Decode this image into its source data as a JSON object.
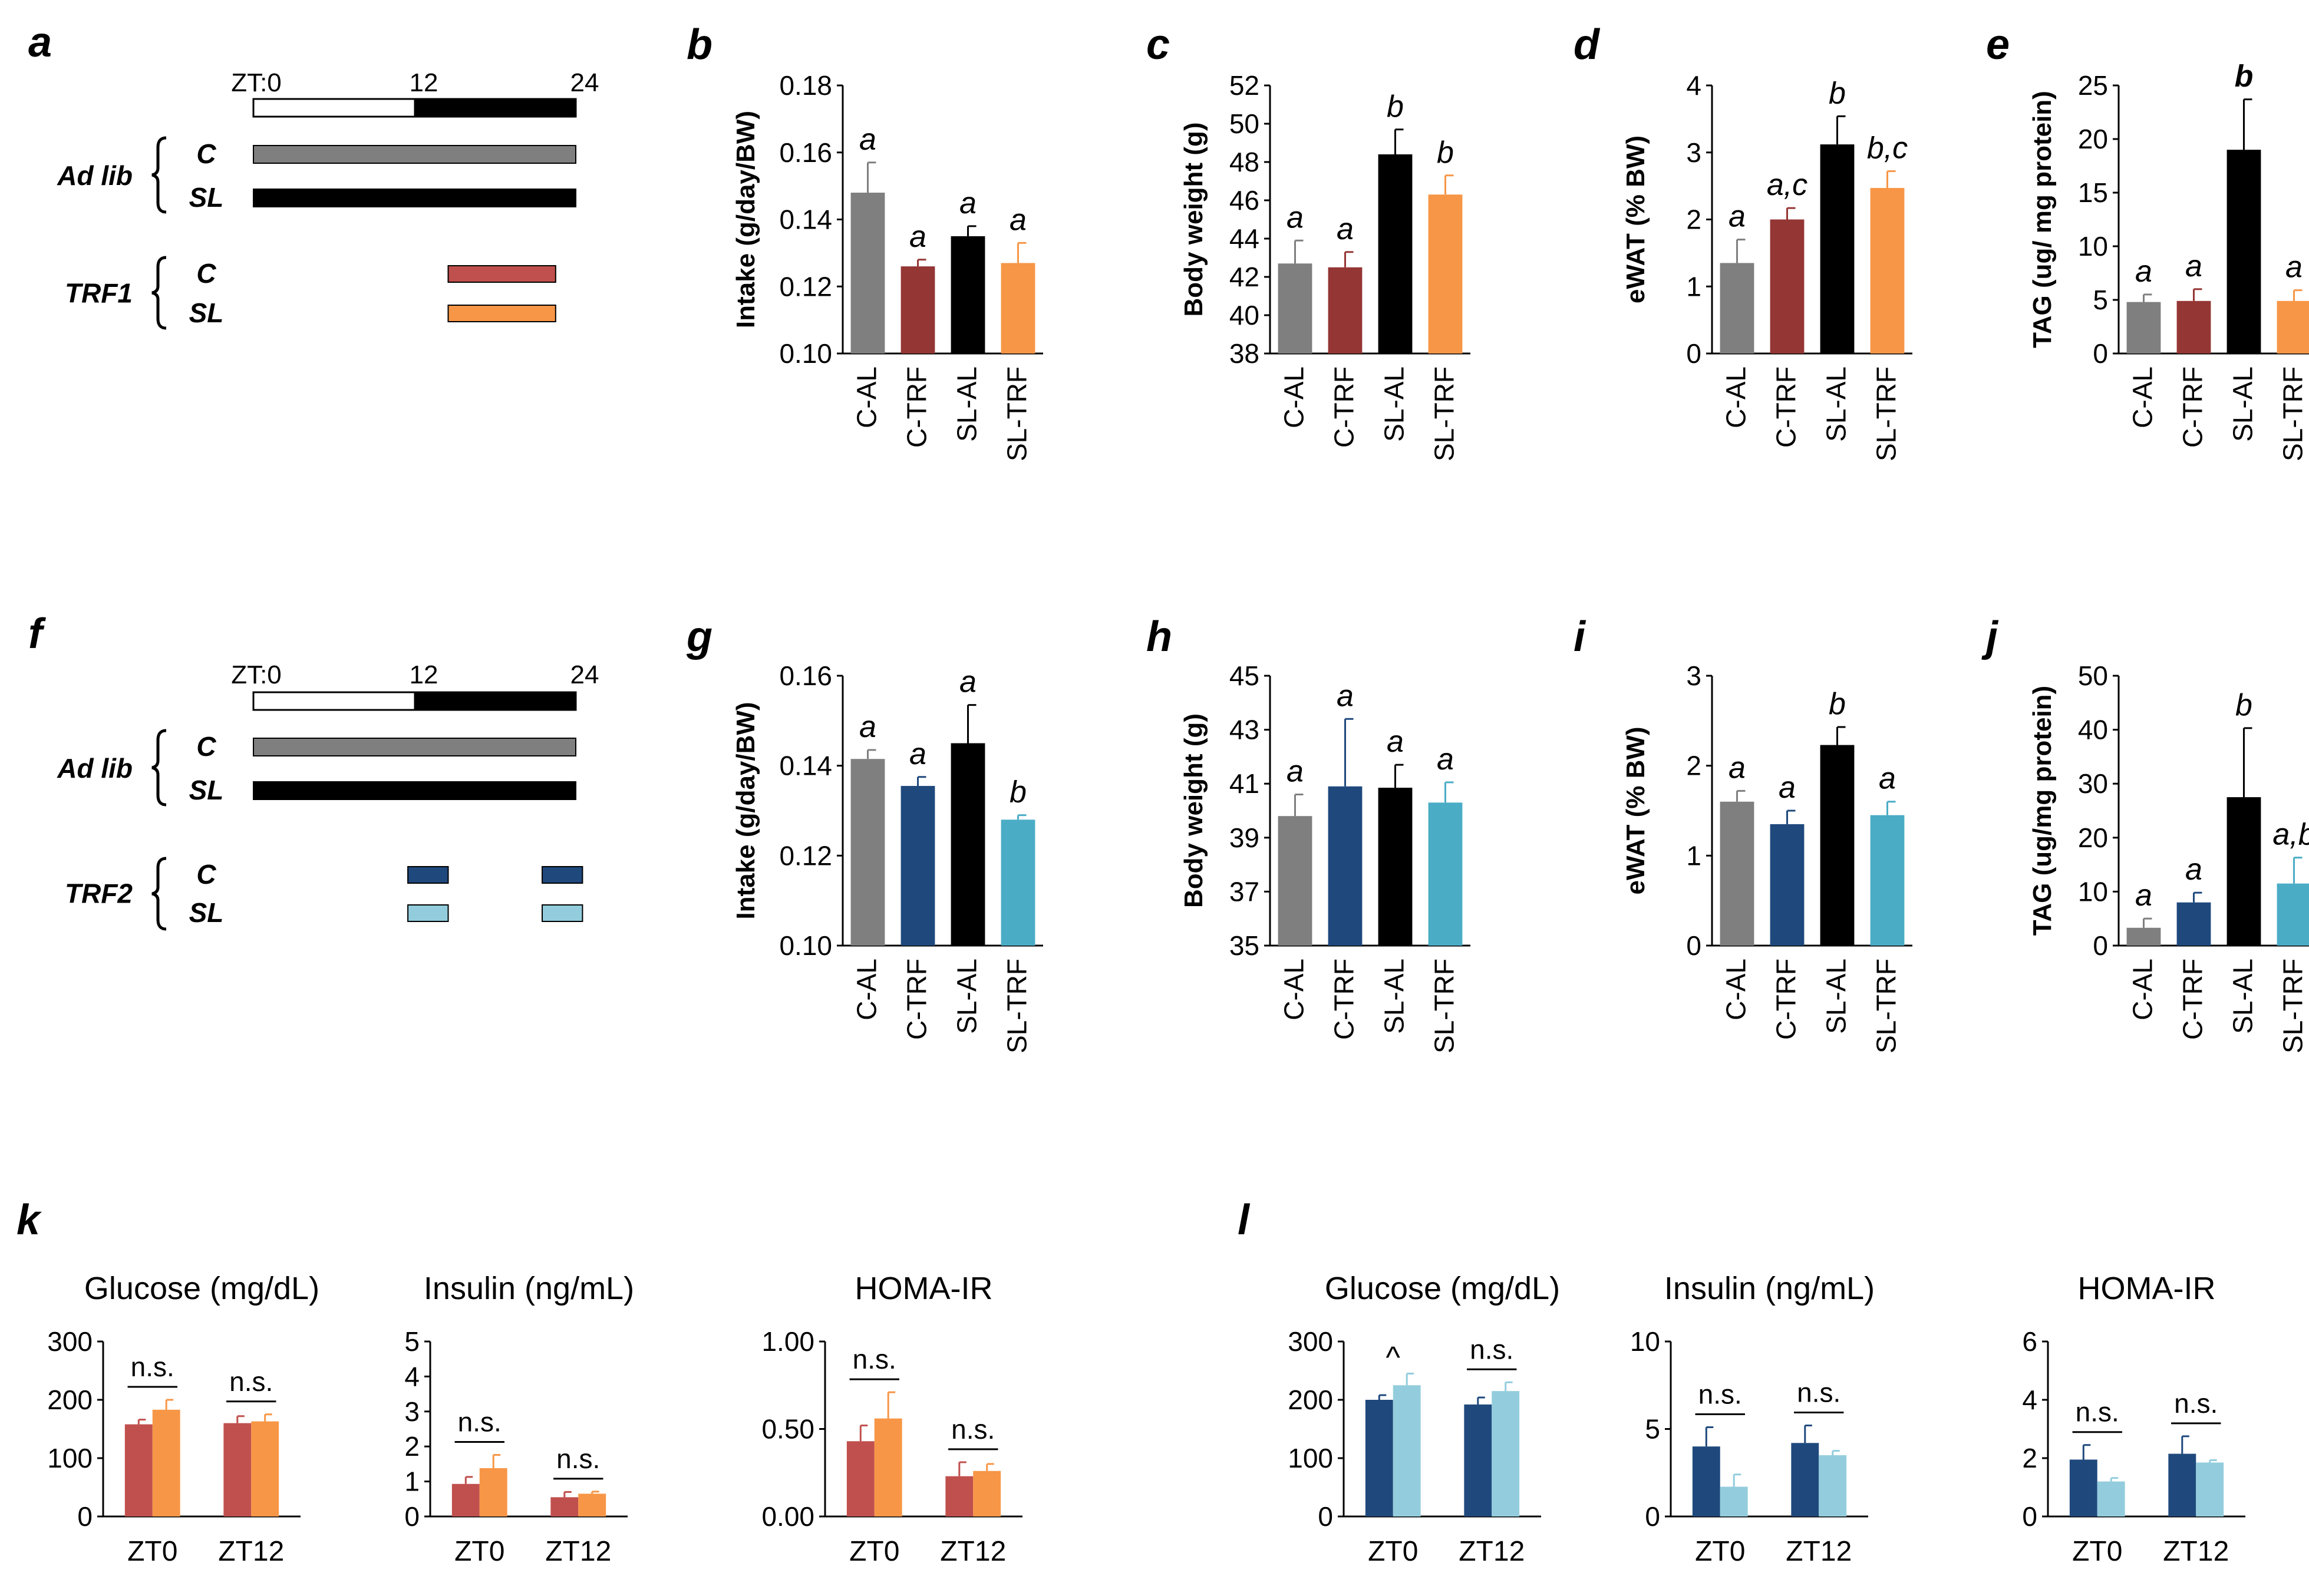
{
  "colors": {
    "gray": "#7f7f7f",
    "dark_red": "#943634",
    "black": "#000000",
    "orange": "#f79646",
    "navy": "#1f497d",
    "teal": "#4bacc6",
    "salmon": "#c0504d",
    "light_blue": "#93cddd",
    "green": "#008000"
  },
  "diagrams": [
    {
      "label": "a",
      "zt_labels": [
        "ZT:0",
        "12",
        "24"
      ],
      "adlib_label": "Ad lib",
      "trf_label": "TRF1",
      "c_label": "C",
      "sl_label": "SL",
      "trf_windows": [
        [
          14.5,
          22.5
        ]
      ],
      "trf_colors": [
        "#c0504d",
        "#f79646"
      ]
    },
    {
      "label": "f",
      "zt_labels": [
        "ZT:0",
        "12",
        "24"
      ],
      "adlib_label": "Ad lib",
      "trf_label": "TRF2",
      "c_label": "C",
      "sl_label": "SL",
      "trf_windows": [
        [
          11.5,
          14.5
        ],
        [
          21.5,
          24.5
        ]
      ],
      "trf_colors": [
        "#1f497d",
        "#93cddd"
      ]
    }
  ],
  "chart_data": [
    {
      "label": "b",
      "type": "bar",
      "ylabel": "Intake (g/day/BW)",
      "categories": [
        "C-AL",
        "C-TRF",
        "SL-AL",
        "SL-TRF"
      ],
      "values": [
        0.148,
        0.126,
        0.135,
        0.127
      ],
      "errors": [
        0.009,
        0.002,
        0.003,
        0.006
      ],
      "sig": [
        "a",
        "a",
        "a",
        "a"
      ],
      "sig_colors": [
        "#000000",
        "#000000",
        "#000000",
        "#000000"
      ],
      "colors": [
        "#7f7f7f",
        "#943634",
        "#000000",
        "#f79646"
      ],
      "ylim": [
        0.1,
        0.18
      ],
      "yticks": [
        "0.10",
        "0.12",
        "0.14",
        "0.16",
        "0.18"
      ]
    },
    {
      "label": "c",
      "type": "bar",
      "ylabel": "Body weight (g)",
      "categories": [
        "C-AL",
        "C-TRF",
        "SL-AL",
        "SL-TRF"
      ],
      "values": [
        42.7,
        42.5,
        48.4,
        46.3
      ],
      "errors": [
        1.2,
        0.8,
        1.3,
        1.0
      ],
      "sig": [
        "a",
        "a",
        "b",
        "b"
      ],
      "sig_colors": [
        "#000000",
        "#000000",
        "#000000",
        "#000000"
      ],
      "colors": [
        "#7f7f7f",
        "#943634",
        "#000000",
        "#f79646"
      ],
      "ylim": [
        38,
        52
      ],
      "yticks": [
        "38",
        "40",
        "42",
        "44",
        "46",
        "48",
        "50",
        "52"
      ]
    },
    {
      "label": "d",
      "type": "bar",
      "ylabel": "eWAT (% BW)",
      "categories": [
        "C-AL",
        "C-TRF",
        "SL-AL",
        "SL-TRF"
      ],
      "values": [
        1.35,
        2.0,
        3.12,
        2.47
      ],
      "errors": [
        0.35,
        0.17,
        0.42,
        0.25
      ],
      "sig": [
        "a",
        "a,c",
        "b",
        "b,c"
      ],
      "sig_colors": [
        "#000000",
        "#000000",
        "#000000",
        "#000000"
      ],
      "colors": [
        "#7f7f7f",
        "#943634",
        "#000000",
        "#f79646"
      ],
      "ylim": [
        0,
        4
      ],
      "yticks": [
        "0",
        "1",
        "2",
        "3",
        "4"
      ]
    },
    {
      "label": "e",
      "type": "bar",
      "ylabel": "TAG (ug/ mg protein)",
      "categories": [
        "C-AL",
        "C-TRF",
        "SL-AL",
        "SL-TRF"
      ],
      "values": [
        4.8,
        4.9,
        19.0,
        4.9
      ],
      "errors": [
        0.7,
        1.1,
        4.7,
        1.0
      ],
      "sig": [
        "a",
        "a",
        "b",
        "a"
      ],
      "sig_colors": [
        "#000000",
        "#000000",
        "#008000",
        "#000000"
      ],
      "colors": [
        "#7f7f7f",
        "#943634",
        "#000000",
        "#f79646"
      ],
      "ylim": [
        0,
        25
      ],
      "yticks": [
        "0",
        "5",
        "10",
        "15",
        "20",
        "25"
      ]
    },
    {
      "label": "g",
      "type": "bar",
      "ylabel": "Intake (g/day/BW)",
      "categories": [
        "C-AL",
        "C-TRF",
        "SL-AL",
        "SL-TRF"
      ],
      "values": [
        0.1415,
        0.1355,
        0.145,
        0.128
      ],
      "errors": [
        0.002,
        0.002,
        0.0085,
        0.001
      ],
      "sig": [
        "a",
        "a",
        "a",
        "b"
      ],
      "sig_colors": [
        "#000000",
        "#000000",
        "#000000",
        "#000000"
      ],
      "colors": [
        "#7f7f7f",
        "#1f497d",
        "#000000",
        "#4bacc6"
      ],
      "ylim": [
        0.1,
        0.16
      ],
      "yticks": [
        "0.10",
        "0.12",
        "0.14",
        "0.16"
      ]
    },
    {
      "label": "h",
      "type": "bar",
      "ylabel": "Body weight (g)",
      "categories": [
        "C-AL",
        "C-TRF",
        "SL-AL",
        "SL-TRF"
      ],
      "values": [
        39.8,
        40.9,
        40.85,
        40.3
      ],
      "errors": [
        0.8,
        2.5,
        0.85,
        0.75
      ],
      "sig": [
        "a",
        "a",
        "a",
        "a"
      ],
      "sig_colors": [
        "#000000",
        "#000000",
        "#000000",
        "#000000"
      ],
      "colors": [
        "#7f7f7f",
        "#1f497d",
        "#000000",
        "#4bacc6"
      ],
      "ylim": [
        35,
        45
      ],
      "yticks": [
        "35",
        "37",
        "39",
        "41",
        "43",
        "45"
      ]
    },
    {
      "label": "i",
      "type": "bar",
      "ylabel": "eWAT (% BW)",
      "categories": [
        "C-AL",
        "C-TRF",
        "SL-AL",
        "SL-TRF"
      ],
      "values": [
        1.6,
        1.35,
        2.23,
        1.45
      ],
      "errors": [
        0.12,
        0.15,
        0.2,
        0.15
      ],
      "sig": [
        "a",
        "a",
        "b",
        "a"
      ],
      "sig_colors": [
        "#000000",
        "#000000",
        "#000000",
        "#000000"
      ],
      "colors": [
        "#7f7f7f",
        "#1f497d",
        "#000000",
        "#4bacc6"
      ],
      "ylim": [
        0,
        3
      ],
      "yticks": [
        "0",
        "1",
        "2",
        "3"
      ]
    },
    {
      "label": "j",
      "type": "bar",
      "ylabel": "TAG (ug/mg protein)",
      "categories": [
        "C-AL",
        "C-TRF",
        "SL-AL",
        "SL-TRF"
      ],
      "values": [
        3.3,
        8.0,
        27.5,
        11.5
      ],
      "errors": [
        1.7,
        1.8,
        12.8,
        4.8
      ],
      "sig": [
        "a",
        "a",
        "b",
        "a,b"
      ],
      "sig_colors": [
        "#000000",
        "#000000",
        "#000000",
        "#000000"
      ],
      "colors": [
        "#7f7f7f",
        "#1f497d",
        "#000000",
        "#4bacc6"
      ],
      "ylim": [
        0,
        50
      ],
      "yticks": [
        "0",
        "10",
        "20",
        "30",
        "40",
        "50"
      ]
    }
  ],
  "group_panels": [
    {
      "label": "k",
      "colors": [
        "#c0504d",
        "#f79646"
      ],
      "subplots": [
        {
          "title": "Glucose (mg/dL)",
          "type": "bar",
          "categories": [
            "ZT0",
            "ZT12"
          ],
          "series_values": [
            [
              158,
              160
            ],
            [
              183,
              163
            ]
          ],
          "series_errors": [
            [
              8,
              12
            ],
            [
              17,
              12
            ]
          ],
          "ylim": [
            0,
            300
          ],
          "yticks": [
            "0",
            "100",
            "200",
            "300"
          ],
          "annotations": [
            "n.s.",
            "n.s."
          ]
        },
        {
          "title": "Insulin (ng/mL)",
          "type": "bar",
          "categories": [
            "ZT0",
            "ZT12"
          ],
          "series_values": [
            [
              0.93,
              0.55
            ],
            [
              1.38,
              0.65
            ]
          ],
          "series_errors": [
            [
              0.2,
              0.15
            ],
            [
              0.38,
              0.06
            ]
          ],
          "ylim": [
            0,
            5
          ],
          "yticks": [
            "0",
            "1",
            "2",
            "3",
            "4",
            "5"
          ],
          "annotations": [
            "n.s.",
            "n.s."
          ]
        },
        {
          "title": "HOMA-IR",
          "type": "bar",
          "categories": [
            "ZT0",
            "ZT12"
          ],
          "series_values": [
            [
              0.43,
              0.23
            ],
            [
              0.56,
              0.26
            ]
          ],
          "series_errors": [
            [
              0.09,
              0.08
            ],
            [
              0.15,
              0.04
            ]
          ],
          "ylim": [
            0,
            1
          ],
          "yticks": [
            "0.00",
            "0.50",
            "1.00"
          ],
          "annotations": [
            "n.s.",
            "n.s."
          ]
        }
      ]
    },
    {
      "label": "l",
      "colors": [
        "#1f497d",
        "#93cddd"
      ],
      "subplots": [
        {
          "title": "Glucose (mg/dL)",
          "type": "bar",
          "categories": [
            "ZT0",
            "ZT12"
          ],
          "series_values": [
            [
              200,
              192
            ],
            [
              225,
              215
            ]
          ],
          "series_errors": [
            [
              8,
              12
            ],
            [
              20,
              15
            ]
          ],
          "ylim": [
            0,
            300
          ],
          "yticks": [
            "0",
            "100",
            "200",
            "300"
          ],
          "annotations": [
            "^",
            "n.s."
          ]
        },
        {
          "title": "Insulin (ng/mL)",
          "type": "bar",
          "categories": [
            "ZT0",
            "ZT12"
          ],
          "series_values": [
            [
              4.0,
              4.2
            ],
            [
              1.7,
              3.5
            ]
          ],
          "series_errors": [
            [
              1.1,
              1.0
            ],
            [
              0.7,
              0.25
            ]
          ],
          "ylim": [
            0,
            10
          ],
          "yticks": [
            "0",
            "5",
            "10"
          ],
          "annotations": [
            "n.s.",
            "n.s."
          ]
        },
        {
          "title": "HOMA-IR",
          "type": "bar",
          "categories": [
            "ZT0",
            "ZT12"
          ],
          "series_values": [
            [
              1.95,
              2.15
            ],
            [
              1.2,
              1.85
            ]
          ],
          "series_errors": [
            [
              0.5,
              0.6
            ],
            [
              0.12,
              0.08
            ]
          ],
          "ylim": [
            0,
            6
          ],
          "yticks": [
            "0",
            "2",
            "4",
            "6"
          ],
          "annotations": [
            "n.s.",
            "n.s."
          ]
        }
      ]
    }
  ]
}
